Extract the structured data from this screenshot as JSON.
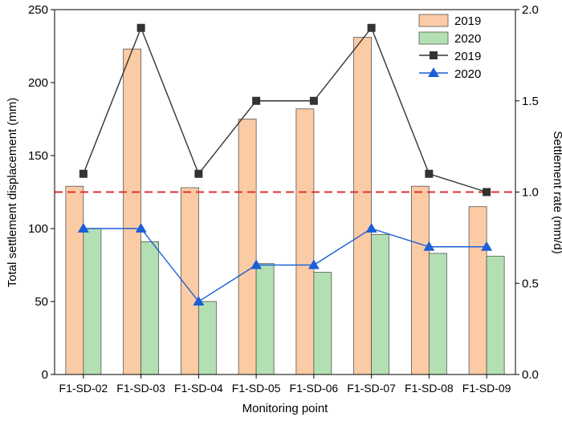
{
  "chart_data": {
    "type": "bar",
    "categories": [
      "F1-SD-02",
      "F1-SD-03",
      "F1-SD-04",
      "F1-SD-05",
      "F1-SD-06",
      "F1-SD-07",
      "F1-SD-08",
      "F1-SD-09"
    ],
    "xlabel": "Monitoring point",
    "ylabel_left": "Total settlement displacement (mm)",
    "ylabel_right": "Settlement rate (mm/d)",
    "ylim_left": [
      0,
      250
    ],
    "ylim_right": [
      0,
      2.0
    ],
    "yticks_left": [
      "0",
      "50",
      "100",
      "150",
      "200",
      "250"
    ],
    "yticks_right": [
      "0.0",
      "0.5",
      "1.0",
      "1.5",
      "2.0"
    ],
    "bar_series": [
      {
        "name": "2019",
        "color": "#FBCBA5",
        "values": [
          129,
          223,
          128,
          175,
          182,
          231,
          129,
          115
        ]
      },
      {
        "name": "2020",
        "color": "#B3E0B3",
        "values": [
          100,
          91,
          50,
          76,
          70,
          96,
          83,
          81
        ]
      }
    ],
    "line_series": [
      {
        "name": "2019",
        "color": "#333333",
        "marker": "square",
        "axis": "right",
        "values": [
          1.1,
          1.9,
          1.1,
          1.5,
          1.5,
          1.9,
          1.1,
          1.0
        ]
      },
      {
        "name": "2020",
        "color": "#1C5FD6",
        "marker": "triangle",
        "axis": "right",
        "values": [
          0.8,
          0.8,
          0.4,
          0.6,
          0.6,
          0.8,
          0.7,
          0.7
        ]
      }
    ],
    "reference_line": {
      "axis": "right",
      "value": 1.0,
      "color": "#E03030",
      "style": "dashed"
    },
    "legend": {
      "position": "top-right",
      "entries": [
        "2019",
        "2020",
        "2019",
        "2020"
      ]
    },
    "grid": false
  }
}
